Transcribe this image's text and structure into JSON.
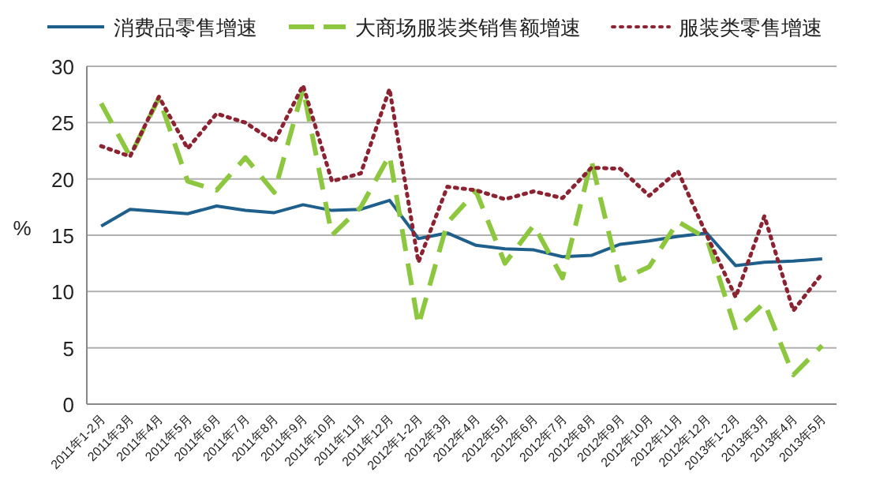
{
  "chart_data": {
    "type": "line",
    "ylabel": "%",
    "categories": [
      "2011年1-2月",
      "2011年3月",
      "2011年4月",
      "2011年5月",
      "2011年6月",
      "2011年7月",
      "2011年8月",
      "2011年9月",
      "2011年10月",
      "2011年11月",
      "2011年12月",
      "2012年1-2月",
      "2012年3月",
      "2012年4月",
      "2012年5月",
      "2012年6月",
      "2012年7月",
      "2012年8月",
      "2012年9月",
      "2012年10月",
      "2012年11月",
      "2012年12月",
      "2013年1-2月",
      "2013年3月",
      "2013年4月",
      "2013年5月"
    ],
    "series": [
      {
        "name": "消费品零售增速",
        "color": "#1f5f8b",
        "line_style": "solid",
        "values": [
          15.8,
          17.3,
          17.1,
          16.9,
          17.6,
          17.2,
          17.0,
          17.7,
          17.2,
          17.3,
          18.1,
          14.7,
          15.2,
          14.1,
          13.8,
          13.7,
          13.1,
          13.2,
          14.2,
          14.5,
          14.9,
          15.2,
          12.3,
          12.6,
          12.7,
          12.9
        ]
      },
      {
        "name": "大商场服装类销售额增速",
        "color": "#8dc63f",
        "line_style": "dashed",
        "values": [
          26.7,
          22.0,
          27.2,
          19.8,
          19.0,
          21.9,
          18.8,
          28.0,
          15.0,
          17.5,
          22.1,
          7.0,
          16.1,
          18.9,
          12.5,
          15.9,
          11.2,
          21.6,
          11.0,
          12.2,
          16.2,
          14.7,
          6.6,
          9.0,
          2.6,
          5.2
        ]
      },
      {
        "name": "服装类零售增速",
        "color": "#8b2332",
        "line_style": "dotted",
        "values": [
          22.9,
          22.0,
          27.3,
          22.7,
          25.8,
          25.0,
          23.3,
          28.3,
          19.8,
          20.5,
          28.0,
          12.6,
          19.3,
          19.0,
          18.2,
          18.9,
          18.3,
          21.0,
          20.9,
          18.5,
          20.7,
          15.0,
          9.5,
          16.7,
          8.3,
          11.6
        ]
      }
    ],
    "ylim": [
      0,
      30
    ],
    "yticks": [
      0,
      5,
      10,
      15,
      20,
      25,
      30
    ],
    "grid": "y",
    "legend": "top",
    "marker": "none"
  }
}
